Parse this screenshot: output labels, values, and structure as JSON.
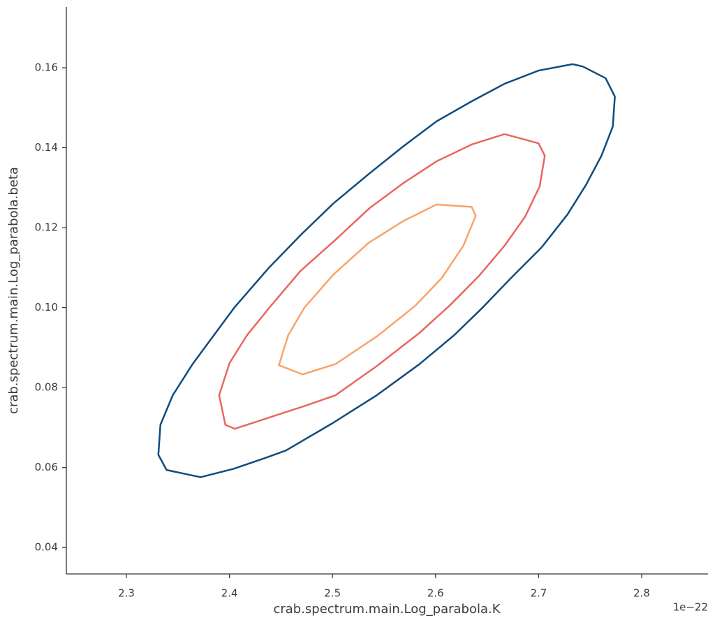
{
  "chart_data": {
    "type": "contour",
    "x_label": "crab.spectrum.main.Log_parabola.K",
    "y_label": "crab.spectrum.main.Log_parabola.beta",
    "x_offset_text": "1e−22",
    "xlim": [
      2.2417,
      2.8644
    ],
    "ylim": [
      0.0334,
      0.1752
    ],
    "xticks": [
      2.3,
      2.4,
      2.5,
      2.6,
      2.7,
      2.8
    ],
    "yticks": [
      0.04,
      0.06,
      0.08,
      {
        "value": 0.1,
        "label": "0.10"
      },
      0.12,
      0.14,
      0.16
    ],
    "series": [
      {
        "color": "#0f4c7f",
        "x": [
          2.733,
          2.743,
          2.765,
          2.774,
          2.772,
          2.761,
          2.746,
          2.728,
          2.703,
          2.672,
          2.646,
          2.618,
          2.584,
          2.543,
          2.5,
          2.455,
          2.438,
          2.404,
          2.372,
          2.339,
          2.331,
          2.333,
          2.345,
          2.364,
          2.374,
          2.405,
          2.438,
          2.47,
          2.501,
          2.536,
          2.569,
          2.601,
          2.635,
          2.667,
          2.7,
          2.733
        ],
        "values": [
          0.1609,
          0.1603,
          0.1574,
          0.1528,
          0.1453,
          0.138,
          0.1307,
          0.1233,
          0.1151,
          0.1071,
          0.1001,
          0.0931,
          0.0858,
          0.0781,
          0.0711,
          0.0643,
          0.0627,
          0.0597,
          0.0576,
          0.0594,
          0.0632,
          0.0707,
          0.0781,
          0.0858,
          0.0893,
          0.1001,
          0.1099,
          0.1184,
          0.1261,
          0.1336,
          0.1404,
          0.1466,
          0.1516,
          0.156,
          0.1593,
          0.1609
        ]
      },
      {
        "color": "#e8675f",
        "x": [
          2.667,
          2.7,
          2.706,
          2.701,
          2.687,
          2.667,
          2.642,
          2.614,
          2.584,
          2.543,
          2.503,
          2.474,
          2.405,
          2.396,
          2.39,
          2.4,
          2.417,
          2.439,
          2.469,
          2.503,
          2.536,
          2.569,
          2.601,
          2.635,
          2.667
        ],
        "values": [
          0.1434,
          0.1411,
          0.138,
          0.1303,
          0.1228,
          0.1155,
          0.1079,
          0.1006,
          0.0936,
          0.0854,
          0.0781,
          0.0755,
          0.0697,
          0.0707,
          0.0781,
          0.0861,
          0.0931,
          0.1001,
          0.1092,
          0.117,
          0.1249,
          0.1312,
          0.1366,
          0.1408,
          0.1434
        ]
      },
      {
        "color": "#f9a36b",
        "x": [
          2.601,
          2.635,
          2.639,
          2.627,
          2.606,
          2.58,
          2.543,
          2.503,
          2.471,
          2.448,
          2.457,
          2.473,
          2.501,
          2.535,
          2.569,
          2.601
        ],
        "values": [
          0.1258,
          0.1252,
          0.123,
          0.1155,
          0.1074,
          0.1004,
          0.0928,
          0.0859,
          0.0833,
          0.0856,
          0.0931,
          0.1001,
          0.1083,
          0.1162,
          0.1217,
          0.1258
        ]
      }
    ]
  }
}
